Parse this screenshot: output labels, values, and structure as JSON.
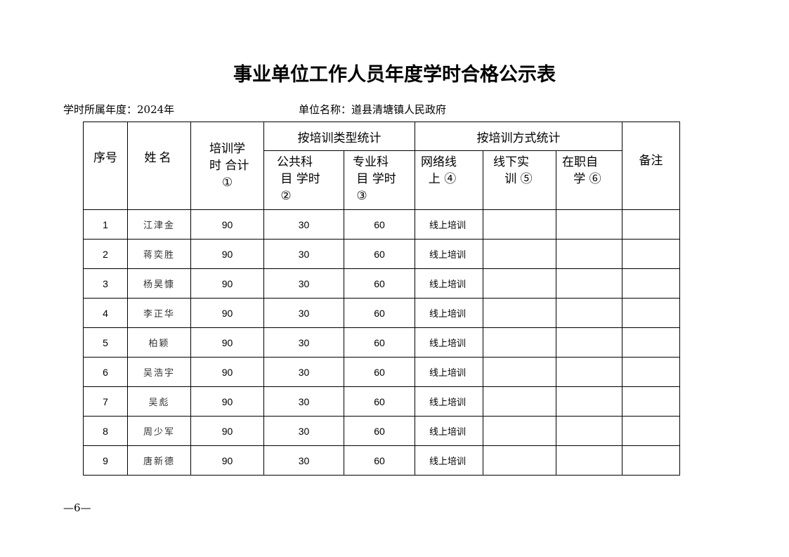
{
  "title": "事业单位工作人员年度学时合格公示表",
  "year_label": "学时所属年度：2024年",
  "unit_label": "单位名称：道县清塘镇人民政府",
  "headers": {
    "seq": "序号",
    "name": "姓名",
    "total": [
      "培训学",
      " 时 合计",
      "①"
    ],
    "by_type": "按培训类型统计",
    "public": [
      "公共科",
      " 目 学时",
      " ②"
    ],
    "professional": [
      "专业科",
      " 目 学时",
      " ③"
    ],
    "by_mode": "按培训方式统计",
    "online": [
      "网络线",
      "  上 ④"
    ],
    "offline": [
      "线下实",
      "   训 ⑤"
    ],
    "self_study": [
      "在职自",
      "   学 ⑥"
    ],
    "remarks": "备注"
  },
  "rows": [
    {
      "seq": "1",
      "name": "江津金",
      "total": "90",
      "public": "30",
      "professional": "60",
      "mode": "线上培训",
      "offline": "",
      "self_study": "",
      "remarks": ""
    },
    {
      "seq": "2",
      "name": "蒋奕胜",
      "total": "90",
      "public": "30",
      "professional": "60",
      "mode": "线上培训",
      "offline": "",
      "self_study": "",
      "remarks": ""
    },
    {
      "seq": "3",
      "name": "杨昊慷",
      "total": "90",
      "public": "30",
      "professional": "60",
      "mode": "线上培训",
      "offline": "",
      "self_study": "",
      "remarks": ""
    },
    {
      "seq": "4",
      "name": "李正华",
      "total": "90",
      "public": "30",
      "professional": "60",
      "mode": "线上培训",
      "offline": "",
      "self_study": "",
      "remarks": ""
    },
    {
      "seq": "5",
      "name": "柏颖",
      "total": "90",
      "public": "30",
      "professional": "60",
      "mode": "线上培训",
      "offline": "",
      "self_study": "",
      "remarks": ""
    },
    {
      "seq": "6",
      "name": "吴浩宇",
      "total": "90",
      "public": "30",
      "professional": "60",
      "mode": "线上培训",
      "offline": "",
      "self_study": "",
      "remarks": ""
    },
    {
      "seq": "7",
      "name": "吴彪",
      "total": "90",
      "public": "30",
      "professional": "60",
      "mode": "线上培训",
      "offline": "",
      "self_study": "",
      "remarks": ""
    },
    {
      "seq": "8",
      "name": "周少军",
      "total": "90",
      "public": "30",
      "professional": "60",
      "mode": "线上培训",
      "offline": "",
      "self_study": "",
      "remarks": ""
    },
    {
      "seq": "9",
      "name": "唐新德",
      "total": "90",
      "public": "30",
      "professional": "60",
      "mode": "线上培训",
      "offline": "",
      "self_study": "",
      "remarks": ""
    }
  ],
  "page_number": "—6—"
}
